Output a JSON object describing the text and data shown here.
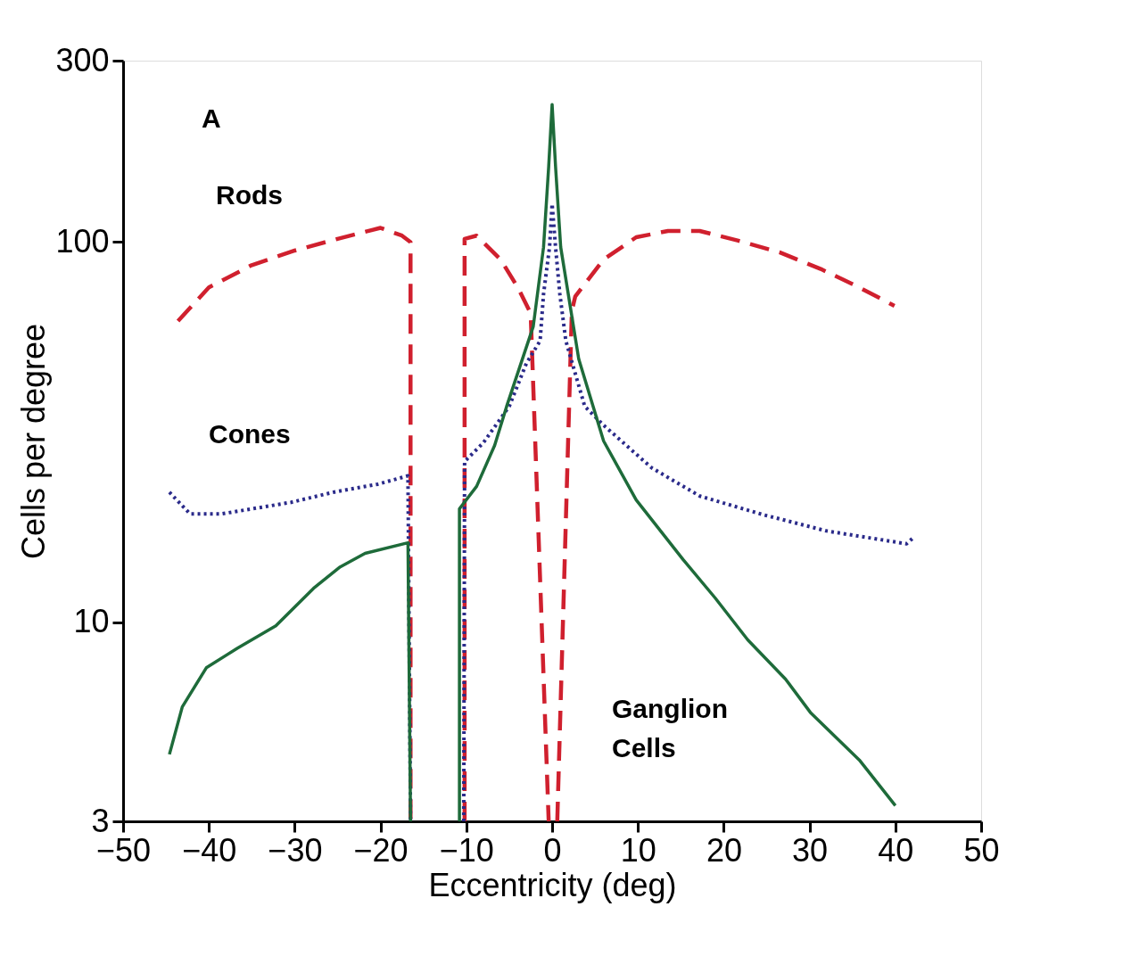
{
  "chart_data": {
    "type": "line",
    "xlabel": "Eccentricity (deg)",
    "ylabel": "Cells per degree",
    "log": "y",
    "xlim": [
      -50,
      50
    ],
    "xticks": [
      -50,
      -40,
      -30,
      -20,
      -10,
      0,
      10,
      20,
      30,
      40,
      50
    ],
    "ylim": [
      3,
      300
    ],
    "yticks": [
      3,
      10,
      100,
      300
    ],
    "annotations": [
      "A"
    ],
    "series": [
      {
        "name": "Rods",
        "color": "#d0202e",
        "line_style": "dashed",
        "x": [
          -43.6,
          -40,
          -35,
          -30,
          -25,
          -20,
          -17.5,
          -16.5,
          -16.5,
          -13.5,
          -10.2,
          -10.2,
          -8.8,
          -6,
          -4,
          -2.5,
          -0.4,
          0.1,
          0.6,
          2.3,
          2.7,
          6,
          9.8,
          13.5,
          17.2,
          21.6,
          26.5,
          31.3,
          35.8,
          39.9
        ],
        "values": [
          62,
          76,
          87,
          95,
          102,
          109,
          104,
          100,
          3,
          null,
          3,
          102,
          104,
          90,
          76,
          65,
          3,
          null,
          3,
          66,
          72,
          90,
          103,
          107,
          107,
          101,
          94,
          85,
          76,
          68
        ]
      },
      {
        "name": "Cones",
        "color": "#2a2a8a",
        "line_style": "dotted",
        "x": [
          -44.6,
          -42.2,
          -38.5,
          -30.4,
          -25.5,
          -20.3,
          -16.8,
          -16.5,
          -13.5,
          -10.3,
          -10.2,
          -8,
          -5,
          -3,
          -1.4,
          -1,
          -0.3,
          0,
          0.4,
          0.9,
          1.6,
          3.8,
          6,
          11.6,
          17.2,
          24.6,
          32,
          41.3,
          42.1
        ],
        "values": [
          22,
          19.3,
          19.3,
          20.7,
          22,
          23.1,
          24.3,
          3,
          null,
          3,
          26.5,
          29.7,
          37,
          48,
          55,
          73,
          97,
          126,
          97,
          73,
          55,
          37,
          33,
          25.5,
          21.5,
          19.2,
          17.4,
          16.1,
          16.7
        ]
      },
      {
        "name": "Ganglion Cells",
        "color": "#1e6b3a",
        "line_style": "solid",
        "x": [
          -44.6,
          -43.1,
          -40.3,
          -36.7,
          -32.2,
          -27.8,
          -24.7,
          -21.8,
          -16.8,
          -16.5,
          -13.5,
          -10.8,
          -10.8,
          -8.8,
          -6.7,
          -5.3,
          -2.2,
          -1,
          -0.4,
          0,
          0.4,
          1,
          3.1,
          6,
          9.8,
          15.3,
          19,
          22.8,
          27.2,
          30.1,
          35.8,
          40
        ],
        "values": [
          4.5,
          6,
          7.6,
          8.55,
          9.8,
          12.3,
          14,
          15.2,
          16.2,
          3,
          null,
          3,
          19.9,
          22.8,
          29.2,
          37,
          60,
          97,
          158,
          230,
          158,
          97,
          49.3,
          30,
          21,
          14.6,
          11.6,
          9,
          7.1,
          5.8,
          4.35,
          3.3
        ]
      }
    ]
  }
}
